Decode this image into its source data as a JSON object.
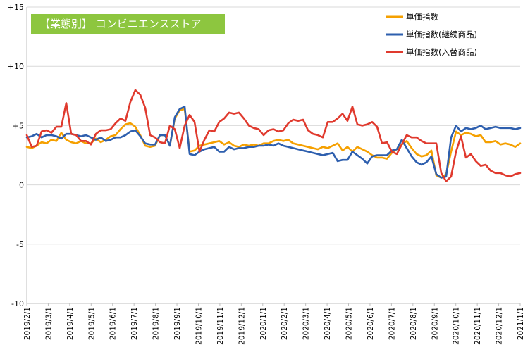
{
  "chart_data": {
    "type": "line",
    "title": "【業態別】 コンビニエンスストア",
    "title_bg_color": "#8DC63F",
    "xlabel": "",
    "ylabel": "",
    "ylim": [
      -10,
      15
    ],
    "y_ticks": [
      15,
      10,
      5,
      0,
      -5,
      -10
    ],
    "y_tick_labels": [
      "+15",
      "+10",
      "+5",
      "0",
      "-5",
      "-10"
    ],
    "x_tick_labels": [
      "2019/2/1",
      "2019/3/1",
      "2019/4/1",
      "2019/5/1",
      "2019/6/1",
      "2019/7/1",
      "2019/8/1",
      "2019/9/1",
      "2019/10/1",
      "2019/11/1",
      "2019/12/1",
      "2020/1/1",
      "2020/2/1",
      "2020/3/1",
      "2020/4/1",
      "2020/5/1",
      "2020/6/1",
      "2020/7/1",
      "2020/8/1",
      "2020/9/1",
      "2020/10/1",
      "2020/11/1",
      "2020/12/1",
      "2021/1/1"
    ],
    "grid": "horizontal",
    "legend_position": "top-right",
    "series": [
      {
        "name": "単価指数",
        "color": "#F5A000",
        "values": [
          3.2,
          3.1,
          3.3,
          3.6,
          3.5,
          3.8,
          3.7,
          4.4,
          3.8,
          3.6,
          3.5,
          3.7,
          3.5,
          3.5,
          3.9,
          3.6,
          3.8,
          4.1,
          4.2,
          4.7,
          5.1,
          5.2,
          4.9,
          4.2,
          3.3,
          3.2,
          3.3,
          4.2,
          4.2,
          3.3,
          5.6,
          6.3,
          6.4,
          2.8,
          2.9,
          3.3,
          3.4,
          3.5,
          3.6,
          3.7,
          3.4,
          3.6,
          3.3,
          3.2,
          3.4,
          3.3,
          3.4,
          3.3,
          3.5,
          3.5,
          3.7,
          3.8,
          3.7,
          3.8,
          3.5,
          3.4,
          3.3,
          3.2,
          3.1,
          3.0,
          3.2,
          3.1,
          3.3,
          3.5,
          2.9,
          3.2,
          2.8,
          3.2,
          3.0,
          2.8,
          2.5,
          2.3,
          2.3,
          2.2,
          2.7,
          3.0,
          3.4,
          3.7,
          3.1,
          2.6,
          2.4,
          2.5,
          2.9,
          0.8,
          0.6,
          0.9,
          2.8,
          4.5,
          4.2,
          4.4,
          4.3,
          4.1,
          4.2,
          3.6,
          3.6,
          3.7,
          3.4,
          3.5,
          3.4,
          3.2,
          3.5
        ]
      },
      {
        "name": "単価指数(継続商品)",
        "color": "#2E5FAE",
        "values": [
          4.0,
          4.1,
          4.3,
          4.0,
          4.2,
          4.2,
          4.1,
          3.9,
          4.3,
          4.3,
          4.2,
          4.1,
          4.2,
          4.0,
          3.8,
          4.0,
          3.7,
          3.8,
          4.0,
          4.0,
          4.2,
          4.5,
          4.6,
          4.1,
          3.5,
          3.4,
          3.4,
          4.2,
          4.2,
          3.3,
          5.7,
          6.4,
          6.6,
          2.6,
          2.5,
          2.8,
          3.0,
          3.1,
          3.2,
          2.8,
          2.8,
          3.2,
          3.0,
          3.1,
          3.1,
          3.2,
          3.2,
          3.3,
          3.3,
          3.4,
          3.3,
          3.5,
          3.3,
          3.2,
          3.1,
          3.0,
          2.9,
          2.8,
          2.7,
          2.6,
          2.5,
          2.6,
          2.7,
          2.0,
          2.1,
          2.1,
          2.8,
          2.5,
          2.2,
          1.8,
          2.4,
          2.5,
          2.5,
          2.5,
          2.9,
          3.0,
          3.8,
          3.1,
          2.4,
          1.9,
          1.7,
          1.9,
          2.4,
          0.9,
          0.6,
          0.7,
          4.0,
          5.0,
          4.5,
          4.8,
          4.7,
          4.8,
          5.0,
          4.7,
          4.8,
          4.9,
          4.8,
          4.8,
          4.8,
          4.7,
          4.8
        ]
      },
      {
        "name": "単価指数(入替商品)",
        "color": "#E03A2E",
        "values": [
          4.2,
          3.2,
          3.3,
          4.5,
          4.6,
          4.4,
          4.9,
          4.9,
          6.9,
          4.3,
          4.2,
          3.7,
          3.7,
          3.4,
          4.3,
          4.6,
          4.6,
          4.7,
          5.2,
          5.6,
          5.4,
          7.0,
          8.0,
          7.6,
          6.5,
          4.2,
          4.0,
          3.6,
          3.5,
          5.0,
          4.7,
          3.1,
          5.0,
          5.9,
          5.3,
          2.8,
          3.8,
          4.6,
          4.5,
          5.3,
          5.6,
          6.1,
          6.0,
          6.1,
          5.6,
          5.0,
          4.8,
          4.7,
          4.2,
          4.6,
          4.7,
          4.5,
          4.6,
          5.2,
          5.5,
          5.4,
          5.5,
          4.6,
          4.3,
          4.2,
          4.0,
          5.3,
          5.3,
          5.6,
          6.0,
          5.4,
          6.6,
          5.1,
          5.0,
          5.1,
          5.3,
          4.9,
          3.5,
          3.6,
          2.8,
          2.6,
          3.4,
          4.2,
          4.0,
          4.0,
          3.7,
          3.5,
          3.5,
          3.5,
          1.0,
          0.3,
          0.7,
          2.8,
          4.1,
          2.3,
          2.6,
          2.0,
          1.6,
          1.7,
          1.2,
          1.0,
          1.0,
          0.8,
          0.7,
          0.9,
          1.0
        ]
      }
    ]
  }
}
